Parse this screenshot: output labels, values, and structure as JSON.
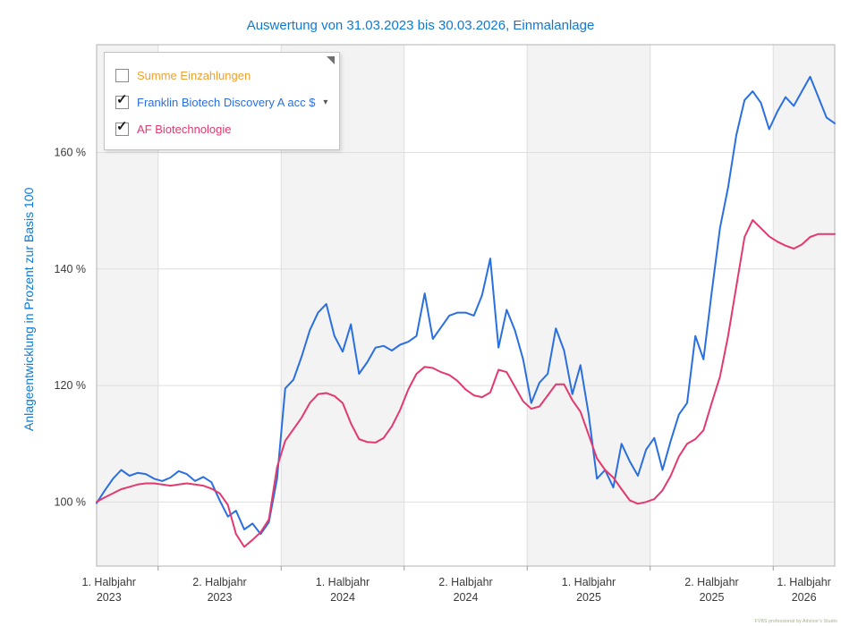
{
  "page": {
    "title": "Auswertung von 31.03.2023 bis 30.03.2026, Einmalanlage",
    "accent_blue": "#0e7ad4",
    "watermark": "FVBS professional by Advisor's Studio"
  },
  "legend": {
    "icons": {
      "check": "✓",
      "dropdown": "▾"
    },
    "items": [
      {
        "label": "Summe Einzahlungen",
        "color": "#f0a030",
        "checked": false,
        "dropdown": false
      },
      {
        "label": "Franklin Biotech Discovery A acc $",
        "color": "#2a6fe0",
        "checked": true,
        "dropdown": true
      },
      {
        "label": "AF Biotechnologie",
        "color": "#e23a6f",
        "checked": true,
        "dropdown": false
      }
    ]
  },
  "chart_data": {
    "type": "line",
    "title": "Auswertung von 31.03.2023 bis 30.03.2026, Einmalanlage",
    "xlabel": "",
    "ylabel": "Anlageentwicklung  in Prozent zur Basis 100",
    "x_unit": "months since 31.03.2023",
    "x_max": 36,
    "sample_step_months": 0.4,
    "ylim": [
      89,
      178.5
    ],
    "grid": true,
    "legend_position": "top-left",
    "colors": {
      "band": "#f3f3f3",
      "grid": "#dedede",
      "border": "#b3b3b3",
      "axis_text": "#3a3a3a",
      "tick": "#9a9a9a"
    },
    "yticks": [
      {
        "value": 100,
        "label": "100 %"
      },
      {
        "value": 120,
        "label": "120 %"
      },
      {
        "value": 140,
        "label": "140 %"
      },
      {
        "value": 160,
        "label": "160 %"
      }
    ],
    "bands": [
      {
        "line1": "1. Halbjahr",
        "line2": "2023",
        "start": 0,
        "end": 3,
        "shaded": true,
        "label_month": 0.6
      },
      {
        "line1": "2. Halbjahr",
        "line2": "2023",
        "start": 3,
        "end": 9,
        "shaded": false,
        "label_month": 6
      },
      {
        "line1": "1. Halbjahr",
        "line2": "2024",
        "start": 9,
        "end": 15,
        "shaded": true,
        "label_month": 12
      },
      {
        "line1": "2. Halbjahr",
        "line2": "2024",
        "start": 15,
        "end": 21,
        "shaded": false,
        "label_month": 18
      },
      {
        "line1": "1. Halbjahr",
        "line2": "2025",
        "start": 21,
        "end": 27,
        "shaded": true,
        "label_month": 24
      },
      {
        "line1": "2. Halbjahr",
        "line2": "2025",
        "start": 27,
        "end": 33,
        "shaded": false,
        "label_month": 30
      },
      {
        "line1": "1. Halbjahr",
        "line2": "2026",
        "start": 33,
        "end": 36,
        "shaded": true,
        "label_month": 34.5
      }
    ],
    "series": [
      {
        "name": "Franklin Biotech Discovery A acc $",
        "color": "#2a6fe0",
        "values": [
          99.8,
          102,
          104,
          105.5,
          104.5,
          105,
          104.8,
          104,
          103.6,
          104.2,
          105.3,
          104.8,
          103.6,
          104.3,
          103.4,
          100.3,
          97.5,
          98.5,
          95.3,
          96.3,
          94.5,
          96.5,
          104,
          119.5,
          121,
          125,
          129.5,
          132.5,
          134,
          128.5,
          125.8,
          130.5,
          122,
          124,
          126.5,
          126.8,
          126,
          127,
          127.5,
          128.5,
          135.8,
          128,
          130,
          132,
          132.5,
          132.5,
          132,
          135.5,
          141.8,
          126.5,
          133,
          129.5,
          124.5,
          117,
          120.5,
          122,
          129.8,
          126,
          118.5,
          123.5,
          115,
          104,
          105.5,
          102.5,
          110,
          107,
          104.5,
          109,
          111,
          105.5,
          110.5,
          115,
          117,
          128.5,
          124.5,
          136,
          147,
          154,
          163,
          169,
          170.5,
          168.5,
          164,
          167,
          169.5,
          168,
          170.5,
          173,
          169.5,
          166,
          165
        ]
      },
      {
        "name": "AF Biotechnologie",
        "color": "#e23a6f",
        "values": [
          100,
          100.8,
          101.5,
          102.2,
          102.6,
          103,
          103.2,
          103.2,
          103,
          102.8,
          103,
          103.2,
          103,
          102.8,
          102.3,
          101.5,
          99.5,
          94.5,
          92.3,
          93.5,
          94.8,
          97,
          106,
          110.5,
          112.5,
          114.5,
          117,
          118.5,
          118.7,
          118.2,
          117,
          113.5,
          110.8,
          110.3,
          110.2,
          111,
          113,
          115.8,
          119.3,
          122,
          123.2,
          123,
          122.3,
          121.8,
          120.8,
          119.3,
          118.3,
          118,
          118.8,
          122.7,
          122.3,
          119.8,
          117.3,
          116,
          116.4,
          118.3,
          120.2,
          120.2,
          117.5,
          115.5,
          111.5,
          107.5,
          105.5,
          104.2,
          102.2,
          100.3,
          99.7,
          100,
          100.5,
          102,
          104.5,
          107.8,
          110,
          110.8,
          112.3,
          117,
          121.5,
          128.5,
          137,
          145.5,
          148.4,
          147,
          145.6,
          144.7,
          144,
          143.5,
          144.2,
          145.5,
          146,
          146,
          146
        ]
      }
    ]
  }
}
